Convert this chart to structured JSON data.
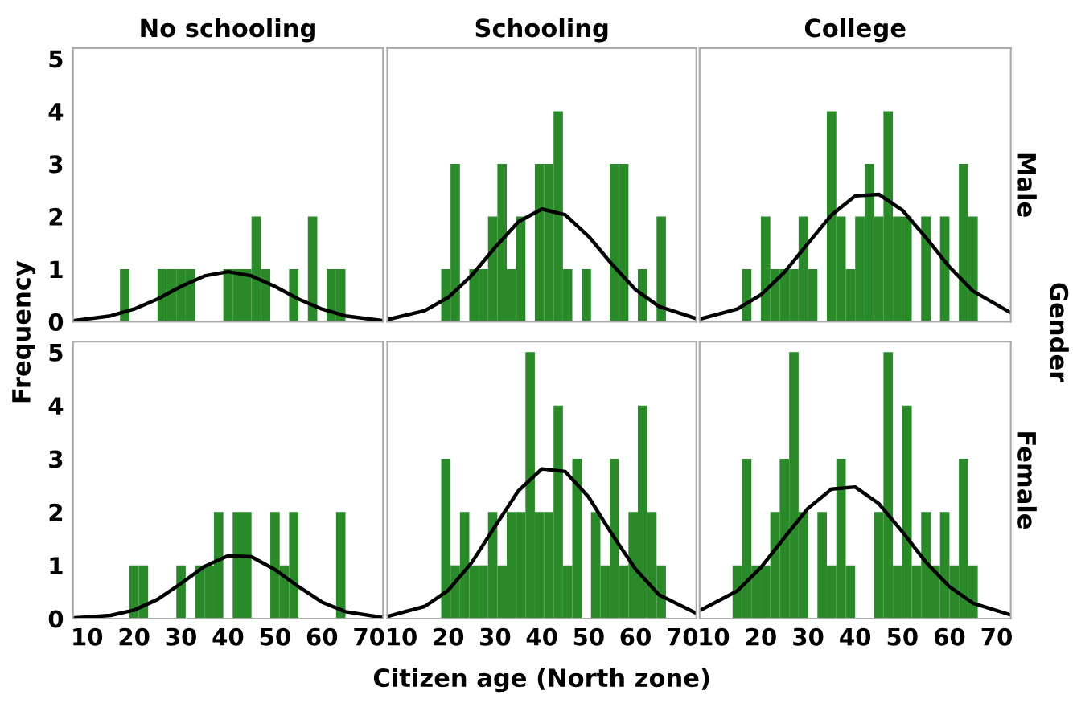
{
  "chart_data": [
    {
      "type": "histogram",
      "title": "No schooling",
      "xlim": [
        7,
        73
      ],
      "ylim": [
        0,
        5.2
      ],
      "xticks": [
        10,
        20,
        30,
        40,
        50,
        60,
        70
      ],
      "yticks": [
        0,
        1,
        2,
        3,
        4,
        5
      ],
      "tick_labels": "y",
      "grid": false,
      "legend": false,
      "ylabel": "Frequency",
      "series": [
        {
          "color": "#2a8a2a",
          "bins": [
            17,
            19,
            21,
            23,
            25,
            27,
            29,
            31,
            33,
            35,
            37,
            39,
            41,
            43,
            45,
            47,
            49,
            51,
            53,
            55,
            57,
            59,
            61,
            63,
            65
          ],
          "values": [
            1,
            0,
            0,
            0,
            1,
            1,
            1,
            1,
            0,
            0,
            0,
            1,
            1,
            1,
            2,
            1,
            0,
            0,
            1,
            0,
            2,
            0,
            1,
            1
          ]
        },
        {
          "type": "line",
          "color": "#000000",
          "x": [
            7,
            15,
            20,
            25,
            30,
            35,
            40,
            45,
            50,
            55,
            60,
            65,
            73
          ],
          "values": [
            0.02,
            0.11,
            0.24,
            0.43,
            0.67,
            0.87,
            0.95,
            0.87,
            0.67,
            0.43,
            0.24,
            0.11,
            0.02
          ]
        }
      ]
    },
    {
      "type": "histogram",
      "title": "Schooling",
      "xlim": [
        7,
        73
      ],
      "ylim": [
        0,
        5.2
      ],
      "xticks": [
        10,
        20,
        30,
        40,
        50,
        60,
        70
      ],
      "yticks": [
        0,
        1,
        2,
        3,
        4,
        5
      ],
      "tick_labels": false,
      "grid": false,
      "legend": false,
      "series": [
        {
          "color": "#2a8a2a",
          "bins": [
            18.5,
            20.5,
            22.5,
            24.5,
            26.5,
            28.5,
            30.5,
            32.5,
            34.5,
            36.5,
            38.5,
            40.5,
            42.5,
            44.5,
            46.5,
            48.5,
            50.5,
            52.5,
            54.5,
            56.5,
            58.5,
            60.5,
            62.5,
            64.5,
            66.5
          ],
          "values": [
            1,
            3,
            0,
            1,
            1,
            2,
            3,
            1,
            2,
            0,
            3,
            3,
            4,
            1,
            0,
            1,
            0,
            0,
            3,
            3,
            0,
            1,
            0,
            2
          ]
        },
        {
          "type": "line",
          "color": "#000000",
          "x": [
            7,
            15,
            20,
            25,
            30,
            35,
            40,
            45,
            50,
            55,
            60,
            65,
            73
          ],
          "values": [
            0.04,
            0.21,
            0.46,
            0.88,
            1.41,
            1.9,
            2.14,
            2.03,
            1.62,
            1.09,
            0.61,
            0.29,
            0.06
          ]
        }
      ]
    },
    {
      "type": "histogram",
      "title": "College",
      "xlim": [
        7,
        73
      ],
      "ylim": [
        0,
        5.2
      ],
      "xticks": [
        10,
        20,
        30,
        40,
        50,
        60,
        70
      ],
      "yticks": [
        0,
        1,
        2,
        3,
        4,
        5
      ],
      "tick_labels": false,
      "grid": false,
      "legend": false,
      "annotations": [
        "Male",
        "Gender"
      ],
      "series": [
        {
          "color": "#2a8a2a",
          "bins": [
            14,
            16,
            18,
            20,
            22,
            24,
            26,
            28,
            30,
            32,
            34,
            36,
            38,
            40,
            42,
            44,
            46,
            48,
            50,
            52,
            54,
            56,
            58,
            60,
            62,
            64,
            66
          ],
          "values": [
            0,
            1,
            0,
            2,
            1,
            1,
            1,
            2,
            1,
            0,
            4,
            2,
            1,
            2,
            3,
            2,
            4,
            2,
            2,
            0,
            2,
            0,
            2,
            0,
            3,
            2
          ]
        },
        {
          "type": "line",
          "color": "#000000",
          "x": [
            7,
            15,
            20,
            25,
            30,
            35,
            40,
            45,
            50,
            55,
            60,
            65,
            73
          ],
          "values": [
            0.05,
            0.24,
            0.51,
            0.94,
            1.49,
            2.03,
            2.39,
            2.42,
            2.12,
            1.6,
            1.04,
            0.58,
            0.17
          ]
        }
      ]
    },
    {
      "type": "histogram",
      "xlim": [
        7,
        73
      ],
      "ylim": [
        0,
        5.2
      ],
      "xticks": [
        10,
        20,
        30,
        40,
        50,
        60,
        70
      ],
      "yticks": [
        0,
        1,
        2,
        3,
        4,
        5
      ],
      "grid": false,
      "legend": false,
      "series": [
        {
          "color": "#2a8a2a",
          "bins": [
            17,
            19,
            21,
            23,
            25,
            27,
            29,
            31,
            33,
            35,
            37,
            39,
            41,
            43,
            45,
            47,
            49,
            51,
            53,
            55,
            57,
            59,
            61,
            63,
            65
          ],
          "values": [
            0,
            1,
            1,
            0,
            0,
            0,
            1,
            0,
            1,
            1,
            2,
            0,
            2,
            2,
            0,
            0,
            2,
            1,
            2,
            0,
            0,
            0,
            0,
            2
          ]
        },
        {
          "type": "line",
          "color": "#000000",
          "x": [
            7,
            15,
            20,
            25,
            30,
            35,
            40,
            45,
            50,
            55,
            60,
            65,
            73
          ],
          "values": [
            0.01,
            0.06,
            0.16,
            0.36,
            0.66,
            0.98,
            1.18,
            1.16,
            0.92,
            0.6,
            0.31,
            0.13,
            0.02
          ]
        }
      ]
    },
    {
      "type": "histogram",
      "xlim": [
        7,
        73
      ],
      "ylim": [
        0,
        5.2
      ],
      "xticks": [
        10,
        20,
        30,
        40,
        50,
        60,
        70
      ],
      "yticks": [
        0,
        1,
        2,
        3,
        4,
        5
      ],
      "tick_labels": "x",
      "grid": false,
      "legend": false,
      "xlabel": "Citizen age (North zone)",
      "series": [
        {
          "color": "#2a8a2a",
          "bins": [
            18.5,
            20.5,
            22.5,
            24.5,
            26.5,
            28.5,
            30.5,
            32.5,
            34.5,
            36.5,
            38.5,
            40.5,
            42.5,
            44.5,
            46.5,
            48.5,
            50.5,
            52.5,
            54.5,
            56.5,
            58.5,
            60.5,
            62.5,
            64.5,
            66.5
          ],
          "values": [
            3,
            1,
            2,
            1,
            1,
            2,
            1,
            2,
            2,
            5,
            2,
            2,
            4,
            1,
            3,
            0,
            2,
            1,
            3,
            1,
            2,
            4,
            2,
            1
          ]
        },
        {
          "type": "line",
          "color": "#000000",
          "x": [
            7,
            15,
            20,
            25,
            30,
            35,
            40,
            45,
            50,
            55,
            60,
            65,
            73
          ],
          "values": [
            0.04,
            0.23,
            0.53,
            1.05,
            1.73,
            2.4,
            2.81,
            2.76,
            2.28,
            1.58,
            0.93,
            0.45,
            0.1
          ]
        }
      ]
    },
    {
      "type": "histogram",
      "xlim": [
        7,
        73
      ],
      "ylim": [
        0,
        5.2
      ],
      "xticks": [
        10,
        20,
        30,
        40,
        50,
        60,
        70
      ],
      "yticks": [
        0,
        1,
        2,
        3,
        4,
        5
      ],
      "tick_labels": "x",
      "grid": false,
      "legend": false,
      "annotations": [
        "Female"
      ],
      "series": [
        {
          "color": "#2a8a2a",
          "bins": [
            14,
            16,
            18,
            20,
            22,
            24,
            26,
            28,
            30,
            32,
            34,
            36,
            38,
            40,
            42,
            44,
            46,
            48,
            50,
            52,
            54,
            56,
            58,
            60,
            62,
            64,
            66
          ],
          "values": [
            1,
            3,
            1,
            1,
            2,
            3,
            5,
            2,
            0,
            2,
            1,
            3,
            1,
            0,
            0,
            2,
            5,
            1,
            4,
            1,
            2,
            1,
            2,
            1,
            3,
            1
          ]
        },
        {
          "type": "line",
          "color": "#000000",
          "x": [
            7,
            15,
            20,
            25,
            30,
            35,
            40,
            45,
            50,
            55,
            60,
            65,
            73
          ],
          "values": [
            0.15,
            0.52,
            0.96,
            1.52,
            2.07,
            2.43,
            2.47,
            2.16,
            1.63,
            1.06,
            0.6,
            0.29,
            0.07
          ]
        }
      ]
    }
  ]
}
